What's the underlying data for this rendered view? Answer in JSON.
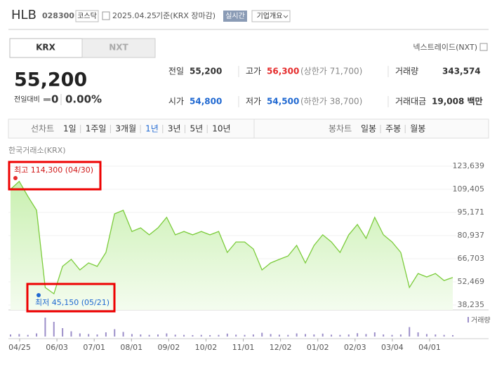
{
  "header": {
    "name": "HLB",
    "code": "028300",
    "market": "코스닥",
    "date": "2025.04.25",
    "basis": "기준(KRX 장마감)",
    "badge": "실시간",
    "button": "기업개요"
  },
  "tabs": [
    "KRX",
    "NXT"
  ],
  "nxt_link": "넥스트레이드(NXT)",
  "price": {
    "current": "55,200",
    "change_label": "전일대비",
    "change": "0",
    "rate": "0.00%"
  },
  "stats": [
    {
      "label": "전일",
      "value": "55,200"
    },
    {
      "label": "고가",
      "value": "56,300",
      "sub": "(상한가 71,700)"
    },
    {
      "label": "거래량",
      "value": "343,574"
    },
    {
      "label": "시가",
      "value": "54,800"
    },
    {
      "label": "저가",
      "value": "54,500",
      "sub": "(하한가 38,700)"
    },
    {
      "label": "거래대금",
      "value": "19,008 백만"
    }
  ],
  "line_chart_label": "선차트",
  "periods": [
    "1일",
    "1주일",
    "3개월",
    "1년",
    "3년",
    "5년",
    "10년"
  ],
  "candle_chart_label": "봉차트",
  "candles": [
    "일봉",
    "주봉",
    "월봉"
  ],
  "chart": {
    "source": "한국거래소(KRX)",
    "ylim": [
      38235,
      123639
    ],
    "yticks": [
      {
        "value": 123639,
        "label": "123,639"
      },
      {
        "value": 109405,
        "label": "109,405"
      },
      {
        "value": 95171,
        "label": "95,171"
      },
      {
        "value": 80937,
        "label": "80,937"
      },
      {
        "value": 66703,
        "label": "66,703"
      },
      {
        "value": 52469,
        "label": "52,469"
      },
      {
        "value": 38235,
        "label": "38,235"
      }
    ],
    "xlabels": [
      "04/25",
      "06/03",
      "07/01",
      "08/01",
      "09/02",
      "10/02",
      "11/01",
      "12/02",
      "01/02",
      "02/03",
      "03/04",
      "04/01"
    ],
    "values": [
      109400,
      114300,
      105100,
      96500,
      49000,
      45150,
      62000,
      66300,
      59800,
      64100,
      62000,
      70600,
      94300,
      96500,
      83500,
      85700,
      81400,
      85700,
      92200,
      81400,
      83500,
      81400,
      83500,
      81400,
      83500,
      70600,
      77000,
      77000,
      72700,
      59800,
      64100,
      66300,
      68400,
      74900,
      64100,
      74900,
      81400,
      77000,
      70600,
      81400,
      87800,
      79200,
      92200,
      81400,
      77000,
      70600,
      49000,
      57600,
      55500,
      57600,
      53300,
      55200
    ],
    "volumes": [
      10,
      12,
      8,
      15,
      90,
      70,
      40,
      25,
      15,
      12,
      10,
      20,
      35,
      22,
      12,
      10,
      8,
      10,
      15,
      9,
      8,
      7,
      8,
      7,
      8,
      14,
      9,
      8,
      10,
      18,
      12,
      9,
      8,
      15,
      12,
      10,
      14,
      9,
      8,
      10,
      16,
      12,
      20,
      10,
      8,
      10,
      45,
      20,
      12,
      10,
      8,
      7
    ],
    "volume_lim": [
      0,
      100
    ],
    "volume_label": "거래량",
    "max_label": "최고 114,300 (04/30)",
    "min_label": "최저 45,150 (05/21)"
  }
}
